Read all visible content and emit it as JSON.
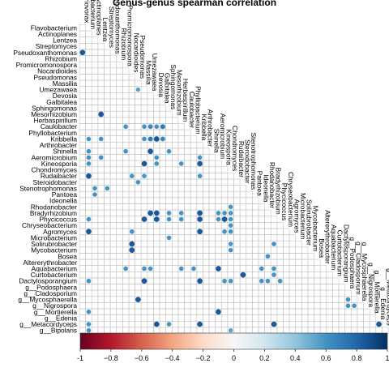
{
  "chart_data": {
    "type": "heatmap",
    "title": "Genus-genus spearman correlation",
    "layout": "lower-triangle",
    "grid": true,
    "genera": [
      "Flavobacterium",
      "Actinoplanes",
      "Lentzea",
      "Streptomyces",
      "Pseudoxanthomonas",
      "Rhizobium",
      "Promicromonospora",
      "Nocardioides",
      "Pseudomonas",
      "Massilia",
      "Umezawaea",
      "Devosia",
      "Galbitalea",
      "Sphingomonas",
      "Mesorhizobium",
      "Herbaspirillum",
      "Caulobacter",
      "Phyllobacterium",
      "Kribbella",
      "Arthrobacter",
      "Shinella",
      "Aeromicrobium",
      "Kineosporia",
      "Chondromyces",
      "Rudaibacter",
      "Steroidobacter",
      "Stenotrophomonas",
      "Pantoea",
      "Ideonella",
      "Rhodanobacter",
      "Bradyrhizobium",
      "Phycicoccus",
      "Chryseobacterium",
      "Agromyces",
      "Microbacterium",
      "Solirubrobacter",
      "Mycobacterium",
      "Bosea",
      "Altererythrobacter",
      "Aquabacterium",
      "Curtobacterium",
      "Dactylosporangium",
      "g__Podosphaera",
      "g__Cladosporium",
      "g__Mycosphaerella",
      "g__Nigrospora",
      "g__Mortierella",
      "g__Edenia",
      "g__Metacordyceps",
      "g__Bipolaris"
    ],
    "row_labels": [
      "Flavobacterium",
      "Actinoplanes",
      "Lentzea",
      "Streptomyces",
      "Pseudoxanthomonas",
      "Rhizobium",
      "Promicromonospora",
      "Nocardioides",
      "Pseudomonas",
      "Massilia",
      "Umezawaea",
      "Devosia",
      "Galbitalea",
      "Sphingomonas",
      "Mesorhizobium",
      "Herbaspirillum",
      "Caulobacter",
      "Phyllobacterium",
      "Kribbella",
      "Arthrobacter",
      "Shinella",
      "Aeromicrobium",
      "Kineosporia",
      "Chondromyces",
      "Rudaibacter",
      "Steroidobacter",
      "Stenotrophomonas",
      "Pantoea",
      "Ideonella",
      "Rhodanobacter",
      "Bradyrhizobium",
      "Phycicoccus",
      "Chryseobacterium",
      "Agromyces",
      "Microbacterium",
      "Solirubrobacter",
      "Mycobacterium",
      "Bosea",
      "Altererythrobacter",
      "Aquabacterium",
      "Curtobacterium",
      "Dactylosporangium",
      "g__Podosphaera",
      "g__Cladosporium",
      "g__Mycosphaerella",
      "g__Nigrospora",
      "g__Mortierella",
      "g__Edenia",
      "g__Metacordyceps",
      "g__Bipolaris"
    ],
    "column_labels": [
      "Variovorax",
      "Flavobacterium",
      "Actinoplanes",
      "Lentzea",
      "Streptomyces",
      "Pseudoxanthomonas",
      "Rhizobium",
      "Promicromonospora",
      "Nocardioides",
      "Pseudomonas",
      "Massilia",
      "Umezawaea",
      "Devosia",
      "Galbitalea",
      "Sphingomonas",
      "Mesorhizobium",
      "Herbaspirillum",
      "Caulobacter",
      "Phyllobacterium",
      "Kribbella",
      "Arthrobacter",
      "Shinella",
      "Aeromicrobium",
      "Kineosporia",
      "Chondromyces",
      "Rudaibacter",
      "Steroidobacter",
      "Stenotrophomonas",
      "Pantoea",
      "Ideonella",
      "Rhodanobacter",
      "Bradyrhizobium",
      "Phycicoccus",
      "Chryseobacterium",
      "Agromyces",
      "Microbacterium",
      "Solirubrobacter",
      "Mycobacterium",
      "Bosea",
      "Altererythrobacter",
      "Aquabacterium",
      "Curtobacterium",
      "Dactylosporangium",
      "g__Podosphaera",
      "g__Cladosporium",
      "g__Mycosphaerella",
      "g__Nigrospora",
      "g__Mortierella",
      "g__Edenia",
      "g__Metacordyceps"
    ],
    "cells": [
      {
        "row": "Pseudoxanthomonas",
        "col": "Variovorax",
        "value": 0.85
      },
      {
        "row": "Umezawaea",
        "col": "Pseudomonas",
        "value": 0.55
      },
      {
        "row": "Mesorhizobium",
        "col": "Lentzea",
        "value": 0.85
      },
      {
        "row": "Caulobacter",
        "col": "Promicromonospora",
        "value": 0.6
      },
      {
        "row": "Caulobacter",
        "col": "Massilia",
        "value": 0.6
      },
      {
        "row": "Caulobacter",
        "col": "Umezawaea",
        "value": 0.65
      },
      {
        "row": "Caulobacter",
        "col": "Devosia",
        "value": 0.6
      },
      {
        "row": "Caulobacter",
        "col": "Galbitalea",
        "value": 0.7
      },
      {
        "row": "Kribbella",
        "col": "Flavobacterium",
        "value": 0.6
      },
      {
        "row": "Kribbella",
        "col": "Lentzea",
        "value": 0.6
      },
      {
        "row": "Kribbella",
        "col": "Massilia",
        "value": 0.6
      },
      {
        "row": "Kribbella",
        "col": "Umezawaea",
        "value": 0.7
      },
      {
        "row": "Kribbella",
        "col": "Devosia",
        "value": 0.85
      },
      {
        "row": "Kribbella",
        "col": "Galbitalea",
        "value": 0.65
      },
      {
        "row": "Shinella",
        "col": "Flavobacterium",
        "value": 0.6
      },
      {
        "row": "Shinella",
        "col": "Promicromonospora",
        "value": 0.6
      },
      {
        "row": "Shinella",
        "col": "Umezawaea",
        "value": 0.85
      },
      {
        "row": "Shinella",
        "col": "Sphingomonas",
        "value": 0.6
      },
      {
        "row": "Aeromicrobium",
        "col": "Flavobacterium",
        "value": 0.6
      },
      {
        "row": "Aeromicrobium",
        "col": "Lentzea",
        "value": 0.6
      },
      {
        "row": "Aeromicrobium",
        "col": "Devosia",
        "value": 0.6
      },
      {
        "row": "Aeromicrobium",
        "col": "Kribbella",
        "value": 0.6
      },
      {
        "row": "Kineosporia",
        "col": "Flavobacterium",
        "value": 0.6
      },
      {
        "row": "Kineosporia",
        "col": "Massilia",
        "value": 0.85
      },
      {
        "row": "Kineosporia",
        "col": "Devosia",
        "value": 0.6
      },
      {
        "row": "Kineosporia",
        "col": "Herbaspirillum",
        "value": 0.6
      },
      {
        "row": "Kineosporia",
        "col": "Kribbella",
        "value": 0.85
      },
      {
        "row": "Rudaibacter",
        "col": "Flavobacterium",
        "value": 0.85
      },
      {
        "row": "Rudaibacter",
        "col": "Nocardioides",
        "value": 0.6
      },
      {
        "row": "Rudaibacter",
        "col": "Massilia",
        "value": 0.6
      },
      {
        "row": "Rudaibacter",
        "col": "Kribbella",
        "value": 0.6
      },
      {
        "row": "Steroidobacter",
        "col": "Pseudomonas",
        "value": 0.6
      },
      {
        "row": "Stenotrophomonas",
        "col": "Actinoplanes",
        "value": 0.6
      },
      {
        "row": "Stenotrophomonas",
        "col": "Streptomyces",
        "value": 0.6
      },
      {
        "row": "Pantoea",
        "col": "Actinoplanes",
        "value": 0.6
      },
      {
        "row": "Rhodanobacter",
        "col": "Chondromyces",
        "value": 0.6
      },
      {
        "row": "Bradyrhizobium",
        "col": "Umezawaea",
        "value": 0.85
      },
      {
        "row": "Bradyrhizobium",
        "col": "Devosia",
        "value": 0.85
      },
      {
        "row": "Bradyrhizobium",
        "col": "Sphingomonas",
        "value": 0.6
      },
      {
        "row": "Bradyrhizobium",
        "col": "Herbaspirillum",
        "value": 0.6
      },
      {
        "row": "Bradyrhizobium",
        "col": "Kribbella",
        "value": 0.85
      },
      {
        "row": "Bradyrhizobium",
        "col": "Aeromicrobium",
        "value": 0.6
      },
      {
        "row": "Bradyrhizobium",
        "col": "Kineosporia",
        "value": 0.6
      },
      {
        "row": "Bradyrhizobium",
        "col": "Chondromyces",
        "value": 0.6
      },
      {
        "row": "Phycicoccus",
        "col": "Flavobacterium",
        "value": 0.6
      },
      {
        "row": "Phycicoccus",
        "col": "Massilia",
        "value": 0.85
      },
      {
        "row": "Phycicoccus",
        "col": "Devosia",
        "value": 0.85
      },
      {
        "row": "Phycicoccus",
        "col": "Sphingomonas",
        "value": 0.6
      },
      {
        "row": "Phycicoccus",
        "col": "Herbaspirillum",
        "value": 0.6
      },
      {
        "row": "Phycicoccus",
        "col": "Kribbella",
        "value": 0.85
      },
      {
        "row": "Phycicoccus",
        "col": "Aeromicrobium",
        "value": 0.6
      },
      {
        "row": "Phycicoccus",
        "col": "Kineosporia",
        "value": 0.85
      },
      {
        "row": "Phycicoccus",
        "col": "Chondromyces",
        "value": 0.6
      },
      {
        "row": "Chryseobacterium",
        "col": "Chondromyces",
        "value": 0.6
      },
      {
        "row": "Agromyces",
        "col": "Flavobacterium",
        "value": 0.85
      },
      {
        "row": "Agromyces",
        "col": "Nocardioides",
        "value": 0.6
      },
      {
        "row": "Agromyces",
        "col": "Kribbella",
        "value": 0.85
      },
      {
        "row": "Agromyces",
        "col": "Kineosporia",
        "value": 0.6
      },
      {
        "row": "Agromyces",
        "col": "Chondromyces",
        "value": 0.6
      },
      {
        "row": "Microbacterium",
        "col": "Sphingomonas",
        "value": 0.6
      },
      {
        "row": "Solirubrobacter",
        "col": "Nocardioides",
        "value": 0.85
      },
      {
        "row": "Solirubrobacter",
        "col": "Chondromyces",
        "value": 0.6
      },
      {
        "row": "Solirubrobacter",
        "col": "Bradyrhizobium",
        "value": 0.6
      },
      {
        "row": "Mycobacterium",
        "col": "Nocardioides",
        "value": 0.85
      },
      {
        "row": "Mycobacterium",
        "col": "Chondromyces",
        "value": 0.6
      },
      {
        "row": "Bosea",
        "col": "Rhodanobacter",
        "value": 0.6
      },
      {
        "row": "Aquabacterium",
        "col": "Promicromonospora",
        "value": 0.6
      },
      {
        "row": "Aquabacterium",
        "col": "Massilia",
        "value": 0.6
      },
      {
        "row": "Aquabacterium",
        "col": "Umezawaea",
        "value": 0.6
      },
      {
        "row": "Aquabacterium",
        "col": "Herbaspirillum",
        "value": 0.6
      },
      {
        "row": "Aquabacterium",
        "col": "Phyllobacterium",
        "value": 0.6
      },
      {
        "row": "Aquabacterium",
        "col": "Aeromicrobium",
        "value": 0.85
      },
      {
        "row": "Aquabacterium",
        "col": "Ideonella",
        "value": 0.6
      },
      {
        "row": "Aquabacterium",
        "col": "Bradyrhizobium",
        "value": 0.6
      },
      {
        "row": "Curtobacterium",
        "col": "Steroidobacter",
        "value": 0.85
      },
      {
        "row": "Curtobacterium",
        "col": "Bradyrhizobium",
        "value": 0.6
      },
      {
        "row": "Dactylosporangium",
        "col": "Flavobacterium",
        "value": 0.6
      },
      {
        "row": "Dactylosporangium",
        "col": "Massilia",
        "value": 0.85
      },
      {
        "row": "Dactylosporangium",
        "col": "Kribbella",
        "value": 0.85
      },
      {
        "row": "Dactylosporangium",
        "col": "Kineosporia",
        "value": 0.6
      },
      {
        "row": "Dactylosporangium",
        "col": "Chondromyces",
        "value": 0.6
      },
      {
        "row": "Dactylosporangium",
        "col": "Rhodanobacter",
        "value": 0.6
      },
      {
        "row": "Dactylosporangium",
        "col": "Ideonella",
        "value": 0.6
      },
      {
        "row": "Dactylosporangium",
        "col": "Phycicoccus",
        "value": 0.6
      },
      {
        "row": "g__Mycosphaerella",
        "col": "Pseudomonas",
        "value": 0.85
      },
      {
        "row": "g__Mycosphaerella",
        "col": "g__Podosphaera",
        "value": 0.6
      },
      {
        "row": "g__Nigrospora",
        "col": "g__Podosphaera",
        "value": 0.6
      },
      {
        "row": "g__Nigrospora",
        "col": "g__Cladosporium",
        "value": 0.6
      },
      {
        "row": "g__Mortierella",
        "col": "Flavobacterium",
        "value": 0.6
      },
      {
        "row": "g__Mortierella",
        "col": "Aeromicrobium",
        "value": 0.85
      },
      {
        "row": "g__Metacordyceps",
        "col": "Flavobacterium",
        "value": 0.6
      },
      {
        "row": "g__Metacordyceps",
        "col": "Devosia",
        "value": 0.85
      },
      {
        "row": "g__Metacordyceps",
        "col": "Sphingomonas",
        "value": 0.6
      },
      {
        "row": "g__Metacordyceps",
        "col": "Kribbella",
        "value": 0.85
      },
      {
        "row": "g__Metacordyceps",
        "col": "Bradyrhizobium",
        "value": 0.85
      },
      {
        "row": "g__Metacordyceps",
        "col": "g__Edenia",
        "value": 0.85
      },
      {
        "row": "g__Bipolaris",
        "col": "Flavobacterium",
        "value": 0.6
      },
      {
        "row": "g__Bipolaris",
        "col": "Chondromyces",
        "value": 0.55
      }
    ],
    "colorbar": {
      "range": [
        -1,
        1
      ],
      "ticks": [
        -1,
        -0.8,
        -0.6,
        -0.4,
        -0.2,
        0,
        0.2,
        0.4,
        0.6,
        0.8,
        1
      ],
      "tick_labels": [
        "-1",
        "−0.8",
        "−0.6",
        "−0.4",
        "−0.2",
        "0",
        "0.2",
        "0.4",
        "0.6",
        "0.8",
        "1"
      ],
      "colors": [
        "#67001f",
        "#b2182b",
        "#d6604d",
        "#f4a582",
        "#fddbc7",
        "#f7f7f7",
        "#d1e5f0",
        "#92c5de",
        "#4393c3",
        "#2166ac",
        "#053061"
      ],
      "placement": "bottom"
    }
  }
}
